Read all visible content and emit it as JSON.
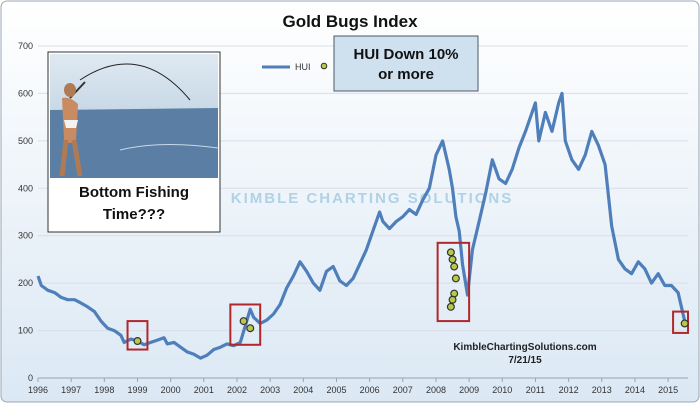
{
  "chart_data": {
    "type": "line",
    "title": "Gold Bugs Index",
    "xlabel": "",
    "ylabel": "",
    "xlim": [
      1996.0,
      2015.6
    ],
    "ylim": [
      0,
      700
    ],
    "yticks": [
      "0",
      "100",
      "200",
      "300",
      "400",
      "500",
      "600",
      "700"
    ],
    "xticks": [
      "1996",
      "1997",
      "1998",
      "1999",
      "2000",
      "2001",
      "2002",
      "2003",
      "2004",
      "2005",
      "2006",
      "2007",
      "2008",
      "2009",
      "2010",
      "2011",
      "2012",
      "2013",
      "2014",
      "2015"
    ],
    "grid": true,
    "legend": {
      "position": "top-center",
      "entries": [
        "HUI",
        ""
      ]
    },
    "series": [
      {
        "name": "HUI",
        "color": "#4f7fba",
        "x": [
          1996.0,
          1996.1,
          1996.3,
          1996.5,
          1996.7,
          1996.9,
          1997.1,
          1997.3,
          1997.5,
          1997.7,
          1997.9,
          1998.1,
          1998.3,
          1998.5,
          1998.6,
          1998.8,
          1999.0,
          1999.2,
          1999.4,
          1999.6,
          1999.8,
          1999.9,
          2000.1,
          2000.3,
          2000.5,
          2000.7,
          2000.9,
          2001.1,
          2001.3,
          2001.5,
          2001.7,
          2001.9,
          2002.1,
          2002.25,
          2002.4,
          2002.5,
          2002.7,
          2002.9,
          2003.1,
          2003.3,
          2003.5,
          2003.7,
          2003.9,
          2004.1,
          2004.3,
          2004.5,
          2004.7,
          2004.9,
          2005.1,
          2005.3,
          2005.5,
          2005.7,
          2005.9,
          2006.1,
          2006.3,
          2006.4,
          2006.6,
          2006.8,
          2007.0,
          2007.2,
          2007.4,
          2007.6,
          2007.8,
          2008.0,
          2008.2,
          2008.4,
          2008.5,
          2008.6,
          2008.7,
          2008.8,
          2008.95,
          2009.1,
          2009.3,
          2009.5,
          2009.7,
          2009.9,
          2010.1,
          2010.3,
          2010.5,
          2010.7,
          2010.9,
          2011.0,
          2011.1,
          2011.3,
          2011.5,
          2011.7,
          2011.8,
          2011.9,
          2012.1,
          2012.3,
          2012.5,
          2012.7,
          2012.9,
          2013.1,
          2013.3,
          2013.5,
          2013.7,
          2013.9,
          2014.1,
          2014.3,
          2014.5,
          2014.7,
          2014.9,
          2015.1,
          2015.3,
          2015.5
        ],
        "values": [
          215,
          195,
          185,
          180,
          170,
          165,
          165,
          158,
          150,
          140,
          120,
          105,
          100,
          90,
          75,
          82,
          78,
          70,
          75,
          80,
          85,
          72,
          75,
          65,
          55,
          50,
          42,
          48,
          60,
          65,
          72,
          68,
          75,
          110,
          145,
          128,
          115,
          122,
          135,
          155,
          190,
          215,
          245,
          225,
          200,
          185,
          225,
          235,
          205,
          195,
          210,
          240,
          270,
          310,
          350,
          330,
          315,
          330,
          340,
          355,
          345,
          375,
          400,
          470,
          500,
          440,
          400,
          340,
          310,
          240,
          175,
          270,
          330,
          390,
          460,
          420,
          410,
          440,
          485,
          520,
          560,
          580,
          500,
          560,
          520,
          580,
          600,
          500,
          460,
          440,
          470,
          520,
          490,
          450,
          320,
          250,
          230,
          220,
          245,
          230,
          200,
          220,
          195,
          195,
          180,
          120
        ]
      },
      {
        "name": "",
        "type": "scatter",
        "color": "#b8c94a",
        "x": [
          1999.0,
          2002.2,
          2002.4,
          2008.45,
          2008.5,
          2008.55,
          2008.6,
          2008.55,
          2008.5,
          2008.45,
          2015.5
        ],
        "values": [
          78,
          120,
          105,
          265,
          250,
          235,
          210,
          178,
          165,
          150,
          115
        ]
      }
    ],
    "annotations": [
      {
        "text": "HUI Down 10%\nor more",
        "lines": [
          "HUI Down 10%",
          "or more"
        ]
      },
      {
        "text": "Bottom Fishing\nTime???",
        "lines": [
          "Bottom Fishing",
          "Time???"
        ]
      },
      {
        "text": "KimbleChartingSolutions.com"
      },
      {
        "text": "7/21/15"
      },
      {
        "text": "KIMBLE CHARTING SOLUTIONS"
      }
    ],
    "highlight_boxes": [
      {
        "x": [
          1998.7,
          1999.3
        ],
        "y": [
          60,
          120
        ]
      },
      {
        "x": [
          2001.8,
          2002.7
        ],
        "y": [
          70,
          155
        ]
      },
      {
        "x": [
          2008.05,
          2009.0
        ],
        "y": [
          120,
          285
        ]
      },
      {
        "x": [
          2015.15,
          2015.6
        ],
        "y": [
          95,
          140
        ]
      }
    ]
  },
  "colors": {
    "line": "#4f7fba",
    "marker_fill": "#b8c94a",
    "marker_stroke": "#333333",
    "highlight": "#b0282c",
    "callout_bg": "#cfe0ef",
    "plot_bg_top": "#ffffff",
    "plot_bg_bottom": "#dde9f5"
  }
}
